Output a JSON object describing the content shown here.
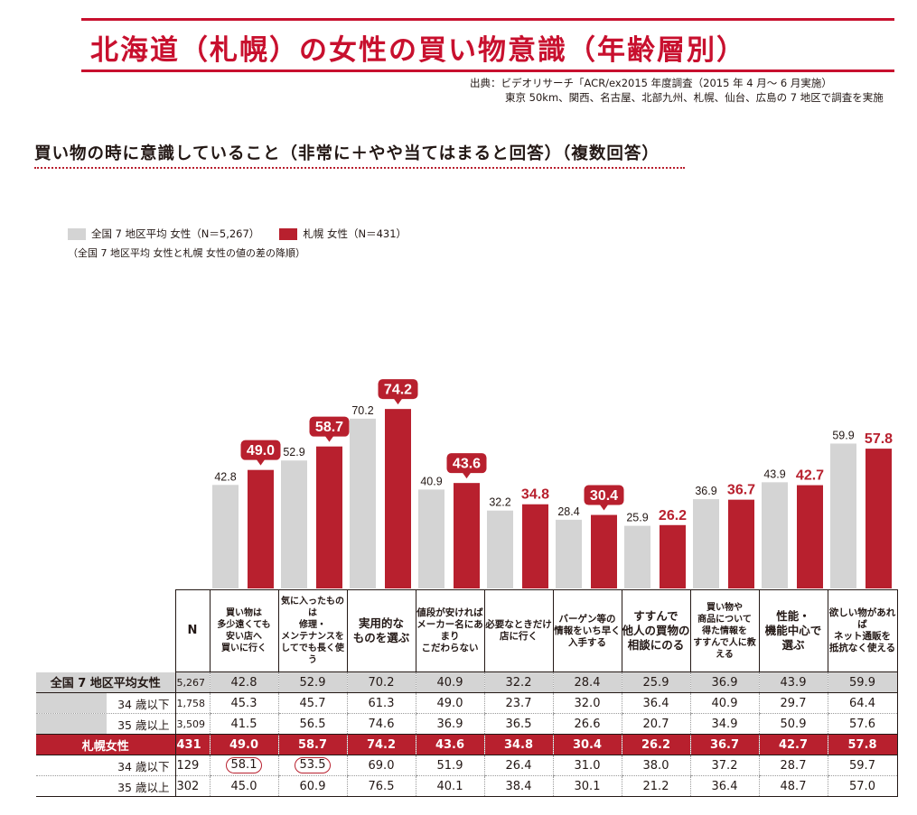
{
  "colors": {
    "grey": "#d4d4d4",
    "red": "#b8202e",
    "title_red": "#c8102e",
    "text": "#231815",
    "dotline": "#b8202e"
  },
  "header": {
    "title": "北海道（札幌）の女性の買い物意識（年齢層別）",
    "source_line1": "出典：ビデオリサーチ「ACR/ex2015 年度調査（2015 年 4 月〜 6 月実施）",
    "source_line2": "東京 50km、関西、名古屋、北部九州、札幌、仙台、広島の 7 地区で調査を実施"
  },
  "subtitle": "買い物の時に意識していること（非常に＋やや当てはまると回答）（複数回答）",
  "legend": {
    "national": "全国 7 地区平均 女性（N＝5,267）",
    "sapporo": "札幌 女性（N＝431）",
    "note": "（全国 7 地区平均 女性と札幌 女性の値の差の降順）"
  },
  "chart_data": {
    "type": "bar",
    "ylim": [
      0,
      100
    ],
    "categories": [
      "買い物は多少遠くても安い店へ買いに行く",
      "気に入ったものは修理・メンテナンスをしてでも長く使う",
      "実用的なものを選ぶ",
      "値段が安ければメーカー名にあまりこだわらない",
      "必要なときだけ店に行く",
      "バーゲン等の情報をいち早く入手する",
      "すすんで他人の買物の相談にのる",
      "買い物や商品について得た情報をすすんで人に教える",
      "性能・機能中心で選ぶ",
      "欲しい物があればネット通販を抵抗なく使える"
    ],
    "series": [
      {
        "name": "全国 7 地区平均 女性（N＝5,267）",
        "values": [
          42.8,
          52.9,
          70.2,
          40.9,
          32.2,
          28.4,
          25.9,
          36.9,
          43.9,
          59.9
        ]
      },
      {
        "name": "札幌 女性（N＝431）",
        "values": [
          49.0,
          58.7,
          74.2,
          43.6,
          34.8,
          30.4,
          26.2,
          36.7,
          42.7,
          57.8
        ]
      }
    ],
    "highlighted_sapporo": [
      true,
      true,
      true,
      true,
      false,
      true,
      false,
      false,
      false,
      false
    ]
  },
  "table": {
    "n_header": "N",
    "headers": [
      [
        "買い物は",
        "多少遠くても",
        "安い店へ",
        "買いに行く"
      ],
      [
        "気に入ったものは",
        "修理・",
        "メンテナンスを",
        "してでも長く使う"
      ],
      [
        "実用的な",
        "ものを選ぶ"
      ],
      [
        "値段が安ければ",
        "メーカー名にあまり",
        "こだわらない"
      ],
      [
        "必要なときだけ",
        "店に行く"
      ],
      [
        "バーゲン等の",
        "情報をいち早く",
        "入手する"
      ],
      [
        "すすんで",
        "他人の買物の",
        "相談にのる"
      ],
      [
        "買い物や",
        "商品について",
        "得た情報を",
        "すすんで人に教える"
      ],
      [
        "性能・",
        "機能中心で",
        "選ぶ"
      ],
      [
        "欲しい物があれば",
        "ネット通販を",
        "抵抗なく使える"
      ]
    ],
    "rows": [
      {
        "label": "全国 7 地区平均女性",
        "n": "5,267",
        "values": [
          "42.8",
          "52.9",
          "70.2",
          "40.9",
          "32.2",
          "28.4",
          "25.9",
          "36.9",
          "43.9",
          "59.9"
        ]
      },
      {
        "label": "34 歳以下",
        "n": "1,758",
        "values": [
          "45.3",
          "45.7",
          "61.3",
          "49.0",
          "23.7",
          "32.0",
          "36.4",
          "40.9",
          "29.7",
          "64.4"
        ]
      },
      {
        "label": "35 歳以上",
        "n": "3,509",
        "values": [
          "41.5",
          "56.5",
          "74.6",
          "36.9",
          "36.5",
          "26.6",
          "20.7",
          "34.9",
          "50.9",
          "57.6"
        ]
      },
      {
        "label": "札幌女性",
        "n": "431",
        "values": [
          "49.0",
          "58.7",
          "74.2",
          "43.6",
          "34.8",
          "30.4",
          "26.2",
          "36.7",
          "42.7",
          "57.8"
        ]
      },
      {
        "label": "34 歳以下",
        "n": "129",
        "values": [
          "58.1",
          "53.5",
          "69.0",
          "51.9",
          "26.4",
          "31.0",
          "38.0",
          "37.2",
          "28.7",
          "59.7"
        ],
        "circled": [
          true,
          true,
          false,
          false,
          false,
          false,
          false,
          false,
          false,
          false
        ]
      },
      {
        "label": "35 歳以上",
        "n": "302",
        "values": [
          "45.0",
          "60.9",
          "76.5",
          "40.1",
          "38.4",
          "30.1",
          "21.2",
          "36.4",
          "48.7",
          "57.0"
        ]
      }
    ]
  }
}
